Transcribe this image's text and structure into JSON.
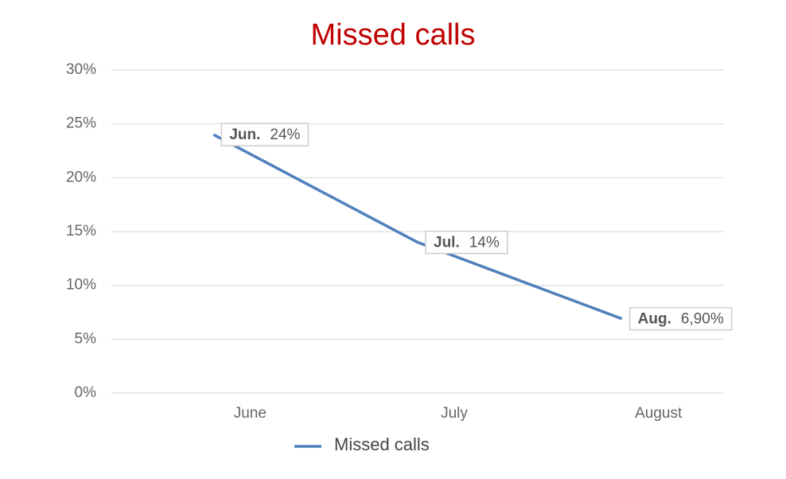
{
  "chart_data": {
    "type": "line",
    "title": "Missed calls",
    "categories": [
      "June",
      "July",
      "August"
    ],
    "series": [
      {
        "name": "Missed calls",
        "color": "#4f81bd",
        "values": [
          24,
          14,
          6.9
        ],
        "value_labels": [
          "24%",
          "14%",
          "6,90%"
        ],
        "callout_labels": [
          "Jun.",
          "Jul.",
          "Aug."
        ]
      }
    ],
    "ylim": [
      0,
      30
    ],
    "yticks": [
      {
        "value": 0,
        "label": "0%"
      },
      {
        "value": 5,
        "label": "5%"
      },
      {
        "value": 10,
        "label": "10%"
      },
      {
        "value": 15,
        "label": "15%"
      },
      {
        "value": 20,
        "label": "20%"
      },
      {
        "value": 25,
        "label": "25%"
      },
      {
        "value": 30,
        "label": "30%"
      }
    ],
    "grid": true
  }
}
